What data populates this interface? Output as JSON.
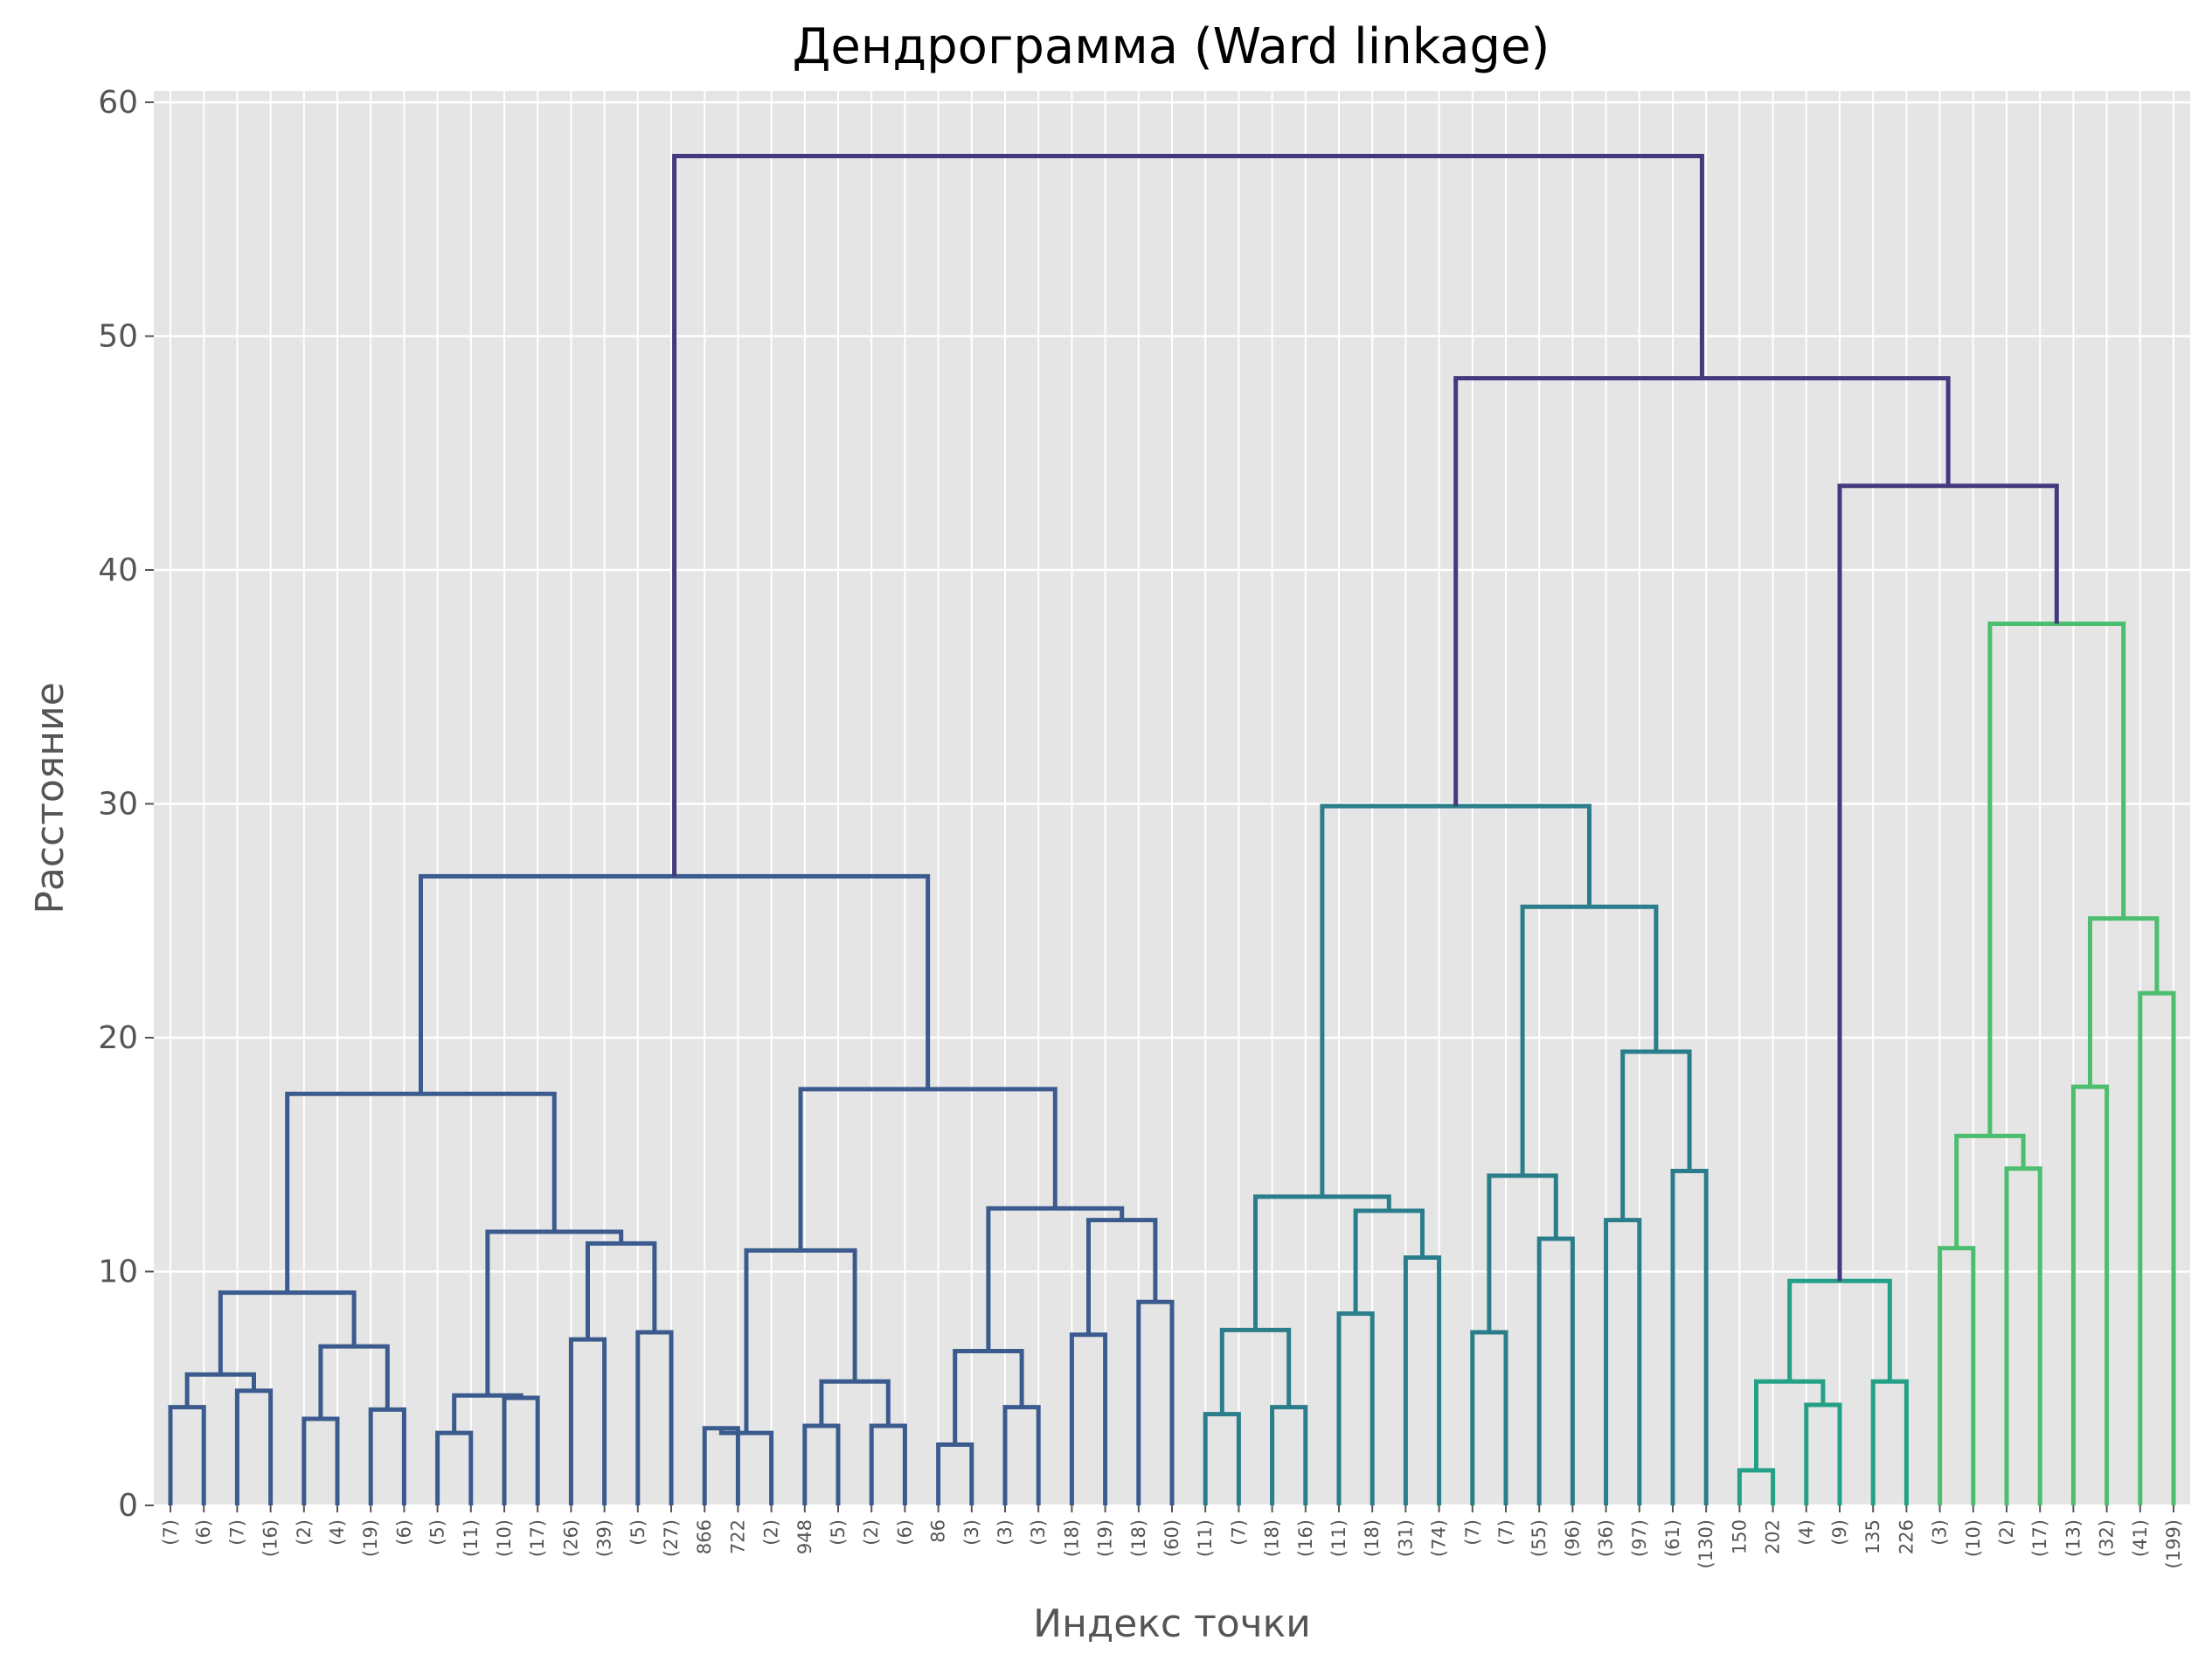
{
  "chart_data": {
    "type": "dendrogram",
    "title": "Дендрограмма (Ward linkage)",
    "xlabel": "Индекс точки",
    "ylabel": "Расстояние",
    "ylim": [
      0,
      60
    ],
    "yticks": [
      0,
      10,
      20,
      30,
      40,
      50,
      60
    ],
    "grid": true,
    "background": "#e5e5e5",
    "leaf_labels": [
      "(7)",
      "(6)",
      "(7)",
      "(16)",
      "(2)",
      "(4)",
      "(19)",
      "(6)",
      "(5)",
      "(11)",
      "(10)",
      "(17)",
      "(26)",
      "(39)",
      "(5)",
      "(27)",
      "866",
      "722",
      "(2)",
      "948",
      "(5)",
      "(2)",
      "(6)",
      "86",
      "(3)",
      "(3)",
      "(3)",
      "(18)",
      "(19)",
      "(18)",
      "(60)",
      "(11)",
      "(7)",
      "(18)",
      "(16)",
      "(11)",
      "(18)",
      "(31)",
      "(74)",
      "(7)",
      "(7)",
      "(55)",
      "(96)",
      "(36)",
      "(97)",
      "(61)",
      "(130)",
      "150",
      "202",
      "(4)",
      "(9)",
      "135",
      "226",
      "(3)",
      "(10)",
      "(2)",
      "(17)",
      "(13)",
      "(32)",
      "(41)",
      "(199)"
    ],
    "colors": {
      "above_threshold": "#433a7e",
      "cluster_1": "#3b5b8e",
      "cluster_2": "#2a7d8a",
      "cluster_3": "#23a086",
      "cluster_4": "#4dbd6f"
    },
    "merges": [
      {
        "id": "a1",
        "left": 0,
        "right": 1,
        "height": 4.2,
        "color": "cluster_1"
      },
      {
        "id": "a2",
        "left": 2,
        "right": 3,
        "height": 4.9,
        "color": "cluster_1"
      },
      {
        "id": "a3",
        "left": "a1",
        "right": "a2",
        "height": 5.6,
        "color": "cluster_1"
      },
      {
        "id": "a4",
        "left": 4,
        "right": 5,
        "height": 3.7,
        "color": "cluster_1"
      },
      {
        "id": "a5",
        "left": 6,
        "right": 7,
        "height": 4.1,
        "color": "cluster_1"
      },
      {
        "id": "a6",
        "left": "a4",
        "right": "a5",
        "height": 6.8,
        "color": "cluster_1"
      },
      {
        "id": "a7",
        "left": "a3",
        "right": "a6",
        "height": 9.1,
        "color": "cluster_1"
      },
      {
        "id": "b1",
        "left": 8,
        "right": 9,
        "height": 3.1,
        "color": "cluster_1"
      },
      {
        "id": "b2",
        "left": 10,
        "right": 11,
        "height": 4.6,
        "color": "cluster_1"
      },
      {
        "id": "b3",
        "left": "b1",
        "right": "b2",
        "height": 4.7,
        "color": "cluster_1"
      },
      {
        "id": "b4",
        "left": 12,
        "right": 13,
        "height": 7.1,
        "color": "cluster_1"
      },
      {
        "id": "b5",
        "left": 14,
        "right": 15,
        "height": 7.4,
        "color": "cluster_1"
      },
      {
        "id": "b6",
        "left": "b4",
        "right": "b5",
        "height": 11.2,
        "color": "cluster_1"
      },
      {
        "id": "b7",
        "left": "b3",
        "right": "b6",
        "height": 11.7,
        "color": "cluster_1"
      },
      {
        "id": "c1",
        "left": "a7",
        "right": "b7",
        "height": 17.6,
        "color": "cluster_1"
      },
      {
        "id": "d1",
        "left": 16,
        "right": 17,
        "height": 3.3,
        "color": "cluster_1"
      },
      {
        "id": "d2",
        "left": "d1",
        "right": 18,
        "height": 3.1,
        "color": "cluster_1"
      },
      {
        "id": "d3",
        "left": 19,
        "right": 20,
        "height": 3.4,
        "color": "cluster_1"
      },
      {
        "id": "d4",
        "left": 21,
        "right": 22,
        "height": 3.4,
        "color": "cluster_1"
      },
      {
        "id": "d5",
        "left": "d3",
        "right": "d4",
        "height": 5.3,
        "color": "cluster_1"
      },
      {
        "id": "d6",
        "left": "d2",
        "right": "d5",
        "height": 10.9,
        "color": "cluster_1"
      },
      {
        "id": "e1",
        "left": 23,
        "right": 24,
        "height": 2.6,
        "color": "cluster_1"
      },
      {
        "id": "e2",
        "left": 25,
        "right": 26,
        "height": 4.2,
        "color": "cluster_1"
      },
      {
        "id": "e3",
        "left": "e1",
        "right": "e2",
        "height": 6.6,
        "color": "cluster_1"
      },
      {
        "id": "e4",
        "left": 27,
        "right": 28,
        "height": 7.3,
        "color": "cluster_1"
      },
      {
        "id": "e5",
        "left": 29,
        "right": 30,
        "height": 8.7,
        "color": "cluster_1"
      },
      {
        "id": "e6",
        "left": "e4",
        "right": "e5",
        "height": 12.2,
        "color": "cluster_1"
      },
      {
        "id": "e7",
        "left": "e3",
        "right": "e6",
        "height": 12.7,
        "color": "cluster_1"
      },
      {
        "id": "f1",
        "left": "d6",
        "right": "e7",
        "height": 17.8,
        "color": "cluster_1"
      },
      {
        "id": "g1",
        "left": "c1",
        "right": "f1",
        "height": 26.9,
        "color": "cluster_1"
      },
      {
        "id": "h1",
        "left": 31,
        "right": 32,
        "height": 3.9,
        "color": "cluster_2"
      },
      {
        "id": "h2",
        "left": 33,
        "right": 34,
        "height": 4.2,
        "color": "cluster_2"
      },
      {
        "id": "h3",
        "left": "h1",
        "right": "h2",
        "height": 7.5,
        "color": "cluster_2"
      },
      {
        "id": "h4",
        "left": 35,
        "right": 36,
        "height": 8.2,
        "color": "cluster_2"
      },
      {
        "id": "h5",
        "left": 37,
        "right": 38,
        "height": 10.6,
        "color": "cluster_2"
      },
      {
        "id": "h6",
        "left": "h4",
        "right": "h5",
        "height": 12.6,
        "color": "cluster_2"
      },
      {
        "id": "h7",
        "left": "h3",
        "right": "h6",
        "height": 13.2,
        "color": "cluster_2"
      },
      {
        "id": "i1",
        "left": 39,
        "right": 40,
        "height": 7.4,
        "color": "cluster_2"
      },
      {
        "id": "i2",
        "left": 41,
        "right": 42,
        "height": 11.4,
        "color": "cluster_2"
      },
      {
        "id": "i3",
        "left": "i1",
        "right": "i2",
        "height": 14.1,
        "color": "cluster_2"
      },
      {
        "id": "i4",
        "left": 43,
        "right": 44,
        "height": 12.2,
        "color": "cluster_2"
      },
      {
        "id": "i5",
        "left": 45,
        "right": 46,
        "height": 14.3,
        "color": "cluster_2"
      },
      {
        "id": "i6",
        "left": "i4",
        "right": "i5",
        "height": 19.4,
        "color": "cluster_2"
      },
      {
        "id": "i7",
        "left": "i3",
        "right": "i6",
        "height": 25.6,
        "color": "cluster_2"
      },
      {
        "id": "j1",
        "left": "h7",
        "right": "i7",
        "height": 29.9,
        "color": "cluster_2"
      },
      {
        "id": "k1",
        "left": 47,
        "right": 48,
        "height": 1.5,
        "color": "cluster_3"
      },
      {
        "id": "k2",
        "left": 49,
        "right": 50,
        "height": 4.3,
        "color": "cluster_3"
      },
      {
        "id": "k3",
        "left": "k1",
        "right": "k2",
        "height": 5.3,
        "color": "cluster_3"
      },
      {
        "id": "k4",
        "left": 51,
        "right": 52,
        "height": 5.3,
        "color": "cluster_3"
      },
      {
        "id": "k5",
        "left": "k3",
        "right": "k4",
        "height": 9.6,
        "color": "cluster_3"
      },
      {
        "id": "l1",
        "left": 53,
        "right": 54,
        "height": 11.0,
        "color": "cluster_4"
      },
      {
        "id": "l2",
        "left": 55,
        "right": 56,
        "height": 14.4,
        "color": "cluster_4"
      },
      {
        "id": "l3",
        "left": "l1",
        "right": "l2",
        "height": 15.8,
        "color": "cluster_4"
      },
      {
        "id": "l4",
        "left": 57,
        "right": 58,
        "height": 17.9,
        "color": "cluster_4"
      },
      {
        "id": "l5",
        "left": 59,
        "right": 60,
        "height": 21.9,
        "color": "cluster_4"
      },
      {
        "id": "l6",
        "left": "l4",
        "right": "l5",
        "height": 25.1,
        "color": "cluster_4"
      },
      {
        "id": "l7",
        "left": "l3",
        "right": "l6",
        "height": 37.7,
        "color": "cluster_4"
      },
      {
        "id": "m1",
        "left": "k5",
        "right": "l7",
        "height": 43.6,
        "color": "above_threshold"
      },
      {
        "id": "m2",
        "left": "j1",
        "right": "m1",
        "height": 48.2,
        "color": "above_threshold"
      },
      {
        "id": "m3",
        "left": "g1",
        "right": "m2",
        "height": 57.7,
        "color": "above_threshold"
      }
    ]
  }
}
